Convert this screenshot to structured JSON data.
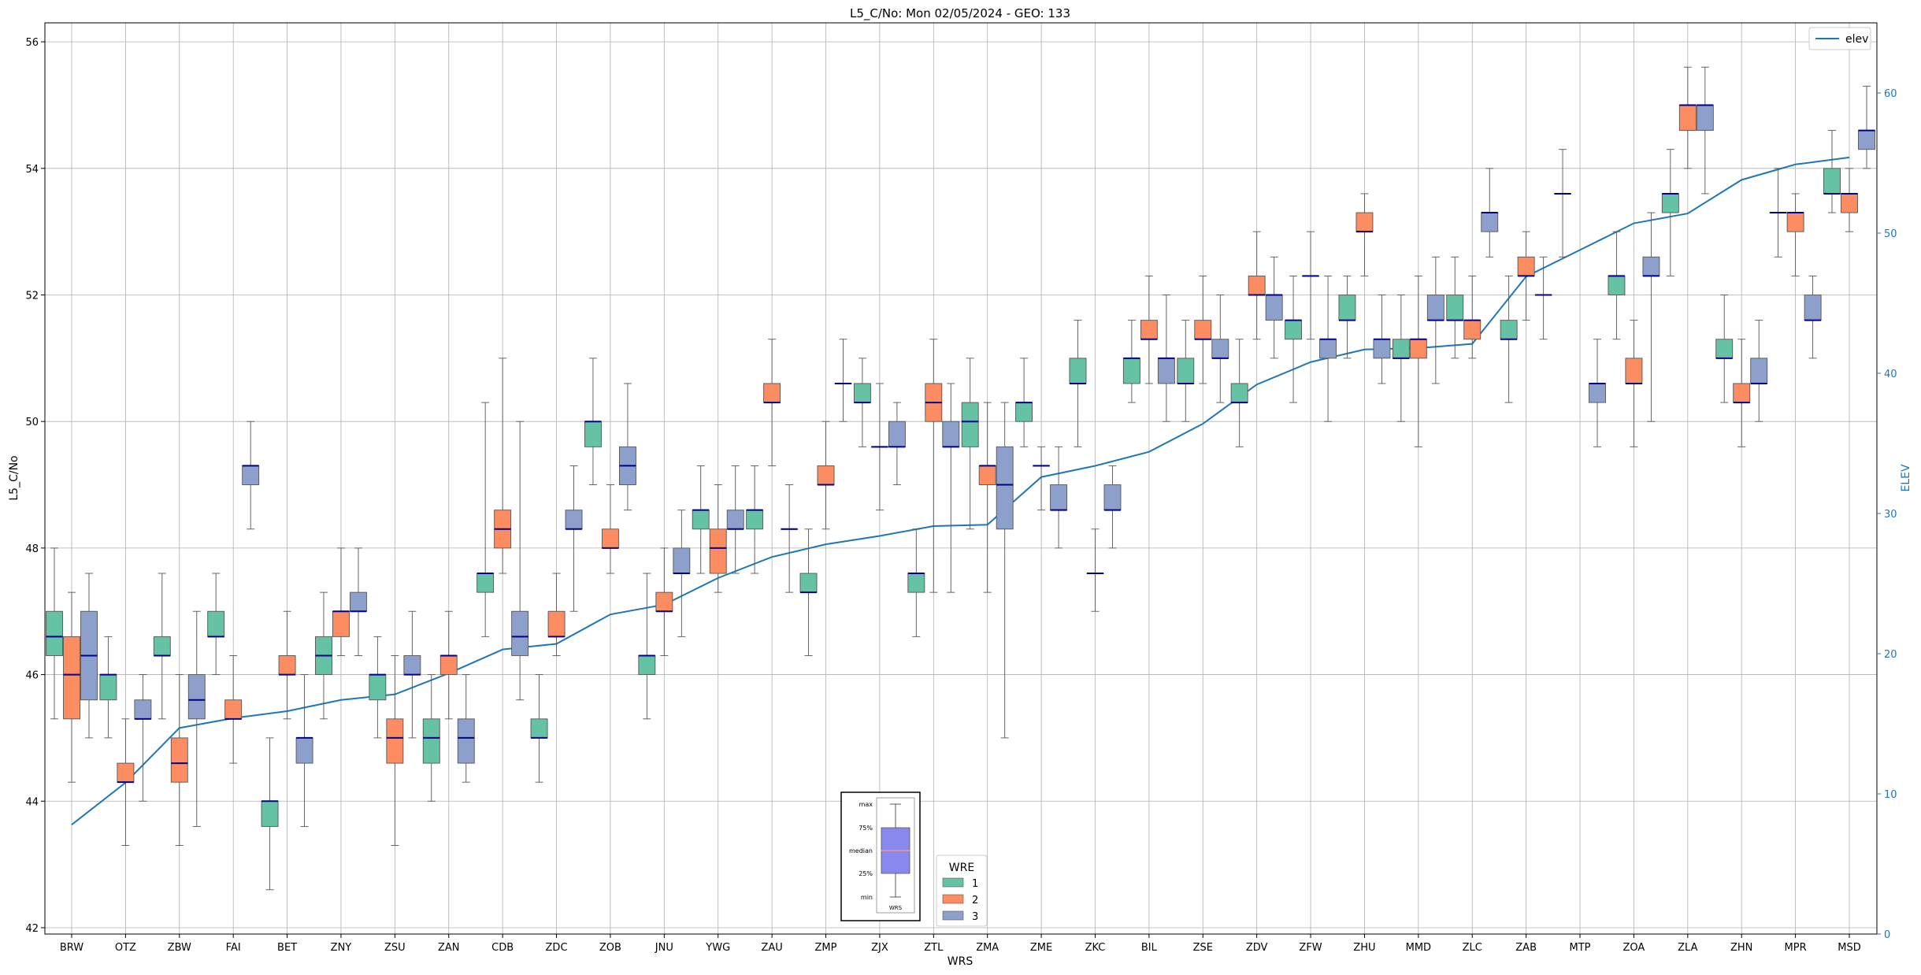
{
  "chart_data": {
    "type": "box",
    "title": "L5_C/No: Mon 02/05/2024 - GEO: 133",
    "xlabel": "WRS",
    "ylabel": "L5_C/No",
    "y2label": "ELEV",
    "ylim": [
      41.9,
      56.3
    ],
    "y2lim": [
      0,
      65
    ],
    "yticks": [
      42,
      44,
      46,
      48,
      50,
      52,
      54,
      56
    ],
    "y2ticks": [
      0,
      10,
      20,
      30,
      40,
      50,
      60
    ],
    "grid": true,
    "colors": {
      "1": "#66c2a5",
      "2": "#fc8d62",
      "3": "#8da0cb",
      "elev": "#1f77b4",
      "median": "#00008b"
    },
    "categories": [
      "BRW",
      "OTZ",
      "ZBW",
      "FAI",
      "BET",
      "ZNY",
      "ZSU",
      "ZAN",
      "CDB",
      "ZDC",
      "ZOB",
      "JNU",
      "YWG",
      "ZAU",
      "ZMP",
      "ZJX",
      "ZTL",
      "ZMA",
      "ZME",
      "ZKC",
      "BIL",
      "ZSE",
      "ZDV",
      "ZFW",
      "ZHU",
      "MMD",
      "ZLC",
      "ZAB",
      "MTP",
      "ZOA",
      "ZLA",
      "ZHN",
      "MPR",
      "MSD"
    ],
    "elevation": [
      7.8,
      10.8,
      14.7,
      15.4,
      15.9,
      16.7,
      17.1,
      18.6,
      20.3,
      20.7,
      22.8,
      23.5,
      25.4,
      26.9,
      27.8,
      28.4,
      29.1,
      29.2,
      32.6,
      33.4,
      34.4,
      36.4,
      39.2,
      40.8,
      41.7,
      41.8,
      42.1,
      46.9,
      48.8,
      50.7,
      51.4,
      53.8,
      54.9,
      55.4
    ],
    "boxes": [
      {
        "cat": "BRW",
        "wre": "1",
        "min": 45.3,
        "q1": 46.3,
        "med": 46.6,
        "q3": 47.0,
        "max": 48.0
      },
      {
        "cat": "BRW",
        "wre": "2",
        "min": 44.3,
        "q1": 45.3,
        "med": 46.0,
        "q3": 46.6,
        "max": 47.3
      },
      {
        "cat": "BRW",
        "wre": "3",
        "min": 45.0,
        "q1": 45.6,
        "med": 46.3,
        "q3": 47.0,
        "max": 47.6
      },
      {
        "cat": "OTZ",
        "wre": "1",
        "min": 45.0,
        "q1": 45.6,
        "med": 46.0,
        "q3": 46.0,
        "max": 46.6
      },
      {
        "cat": "OTZ",
        "wre": "2",
        "min": 43.3,
        "q1": 44.3,
        "med": 44.3,
        "q3": 44.6,
        "max": 45.3
      },
      {
        "cat": "OTZ",
        "wre": "3",
        "min": 44.0,
        "q1": 45.3,
        "med": 45.3,
        "q3": 45.6,
        "max": 46.0
      },
      {
        "cat": "ZBW",
        "wre": "1",
        "min": 45.3,
        "q1": 46.3,
        "med": 46.3,
        "q3": 46.6,
        "max": 47.6
      },
      {
        "cat": "ZBW",
        "wre": "2",
        "min": 43.3,
        "q1": 44.3,
        "med": 44.6,
        "q3": 45.0,
        "max": 46.0
      },
      {
        "cat": "ZBW",
        "wre": "3",
        "min": 43.6,
        "q1": 45.3,
        "med": 45.6,
        "q3": 46.0,
        "max": 47.0
      },
      {
        "cat": "FAI",
        "wre": "1",
        "min": 46.0,
        "q1": 46.6,
        "med": 46.6,
        "q3": 47.0,
        "max": 47.6
      },
      {
        "cat": "FAI",
        "wre": "2",
        "min": 44.6,
        "q1": 45.3,
        "med": 45.3,
        "q3": 45.6,
        "max": 46.3
      },
      {
        "cat": "FAI",
        "wre": "3",
        "min": 48.3,
        "q1": 49.0,
        "med": 49.3,
        "q3": 49.3,
        "max": 50.0
      },
      {
        "cat": "BET",
        "wre": "1",
        "min": 42.6,
        "q1": 43.6,
        "med": 44.0,
        "q3": 44.0,
        "max": 45.0
      },
      {
        "cat": "BET",
        "wre": "2",
        "min": 45.3,
        "q1": 46.0,
        "med": 46.0,
        "q3": 46.3,
        "max": 47.0
      },
      {
        "cat": "BET",
        "wre": "3",
        "min": 43.6,
        "q1": 44.6,
        "med": 45.0,
        "q3": 45.0,
        "max": 46.0
      },
      {
        "cat": "ZNY",
        "wre": "1",
        "min": 45.3,
        "q1": 46.0,
        "med": 46.3,
        "q3": 46.6,
        "max": 47.3
      },
      {
        "cat": "ZNY",
        "wre": "2",
        "min": 46.3,
        "q1": 46.6,
        "med": 47.0,
        "q3": 47.0,
        "max": 48.0
      },
      {
        "cat": "ZNY",
        "wre": "3",
        "min": 46.3,
        "q1": 47.0,
        "med": 47.0,
        "q3": 47.3,
        "max": 48.0
      },
      {
        "cat": "ZSU",
        "wre": "1",
        "min": 45.0,
        "q1": 45.6,
        "med": 46.0,
        "q3": 46.0,
        "max": 46.6
      },
      {
        "cat": "ZSU",
        "wre": "2",
        "min": 43.3,
        "q1": 44.6,
        "med": 45.0,
        "q3": 45.3,
        "max": 46.3
      },
      {
        "cat": "ZSU",
        "wre": "3",
        "min": 45.0,
        "q1": 46.0,
        "med": 46.0,
        "q3": 46.3,
        "max": 47.0
      },
      {
        "cat": "ZAN",
        "wre": "1",
        "min": 44.0,
        "q1": 44.6,
        "med": 45.0,
        "q3": 45.3,
        "max": 46.0
      },
      {
        "cat": "ZAN",
        "wre": "2",
        "min": 45.3,
        "q1": 46.0,
        "med": 46.3,
        "q3": 46.3,
        "max": 47.0
      },
      {
        "cat": "ZAN",
        "wre": "3",
        "min": 44.3,
        "q1": 44.6,
        "med": 45.0,
        "q3": 45.3,
        "max": 46.0
      },
      {
        "cat": "CDB",
        "wre": "1",
        "min": 46.6,
        "q1": 47.3,
        "med": 47.6,
        "q3": 47.6,
        "max": 50.3
      },
      {
        "cat": "CDB",
        "wre": "2",
        "min": 47.6,
        "q1": 48.0,
        "med": 48.3,
        "q3": 48.6,
        "max": 51.0
      },
      {
        "cat": "CDB",
        "wre": "3",
        "min": 45.6,
        "q1": 46.3,
        "med": 46.6,
        "q3": 47.0,
        "max": 50.0
      },
      {
        "cat": "ZDC",
        "wre": "1",
        "min": 44.3,
        "q1": 45.0,
        "med": 45.0,
        "q3": 45.3,
        "max": 46.0
      },
      {
        "cat": "ZDC",
        "wre": "2",
        "min": 46.3,
        "q1": 46.6,
        "med": 46.6,
        "q3": 47.0,
        "max": 47.6
      },
      {
        "cat": "ZDC",
        "wre": "3",
        "min": 47.0,
        "q1": 48.3,
        "med": 48.3,
        "q3": 48.6,
        "max": 49.3
      },
      {
        "cat": "ZOB",
        "wre": "1",
        "min": 49.0,
        "q1": 49.6,
        "med": 50.0,
        "q3": 50.0,
        "max": 51.0
      },
      {
        "cat": "ZOB",
        "wre": "2",
        "min": 47.6,
        "q1": 48.0,
        "med": 48.0,
        "q3": 48.3,
        "max": 49.0
      },
      {
        "cat": "ZOB",
        "wre": "3",
        "min": 48.6,
        "q1": 49.0,
        "med": 49.3,
        "q3": 49.6,
        "max": 50.6
      },
      {
        "cat": "JNU",
        "wre": "1",
        "min": 45.3,
        "q1": 46.0,
        "med": 46.3,
        "q3": 46.3,
        "max": 47.6
      },
      {
        "cat": "JNU",
        "wre": "2",
        "min": 46.3,
        "q1": 47.0,
        "med": 47.0,
        "q3": 47.3,
        "max": 48.0
      },
      {
        "cat": "JNU",
        "wre": "3",
        "min": 46.6,
        "q1": 47.6,
        "med": 47.6,
        "q3": 48.0,
        "max": 48.6
      },
      {
        "cat": "YWG",
        "wre": "1",
        "min": 47.6,
        "q1": 48.3,
        "med": 48.6,
        "q3": 48.6,
        "max": 49.3
      },
      {
        "cat": "YWG",
        "wre": "2",
        "min": 47.3,
        "q1": 47.6,
        "med": 48.0,
        "q3": 48.3,
        "max": 49.0
      },
      {
        "cat": "YWG",
        "wre": "3",
        "min": 47.6,
        "q1": 48.3,
        "med": 48.3,
        "q3": 48.6,
        "max": 49.3
      },
      {
        "cat": "ZAU",
        "wre": "1",
        "min": 47.6,
        "q1": 48.3,
        "med": 48.6,
        "q3": 48.6,
        "max": 49.3
      },
      {
        "cat": "ZAU",
        "wre": "2",
        "min": 49.3,
        "q1": 50.3,
        "med": 50.3,
        "q3": 50.6,
        "max": 51.3
      },
      {
        "cat": "ZAU",
        "wre": "3",
        "min": 47.3,
        "q1": 48.3,
        "med": 48.3,
        "q3": 48.3,
        "max": 49.0
      },
      {
        "cat": "ZMP",
        "wre": "1",
        "min": 46.3,
        "q1": 47.3,
        "med": 47.3,
        "q3": 47.6,
        "max": 48.3
      },
      {
        "cat": "ZMP",
        "wre": "2",
        "min": 48.3,
        "q1": 49.0,
        "med": 49.0,
        "q3": 49.3,
        "max": 50.0
      },
      {
        "cat": "ZMP",
        "wre": "3",
        "min": 50.0,
        "q1": 50.6,
        "med": 50.6,
        "q3": 50.6,
        "max": 51.3
      },
      {
        "cat": "ZJX",
        "wre": "1",
        "min": 49.6,
        "q1": 50.3,
        "med": 50.3,
        "q3": 50.6,
        "max": 51.0
      },
      {
        "cat": "ZJX",
        "wre": "2",
        "min": 48.6,
        "q1": 49.6,
        "med": 49.6,
        "q3": 49.6,
        "max": 50.6
      },
      {
        "cat": "ZJX",
        "wre": "3",
        "min": 49.0,
        "q1": 49.6,
        "med": 49.6,
        "q3": 50.0,
        "max": 50.3
      },
      {
        "cat": "ZTL",
        "wre": "1",
        "min": 46.6,
        "q1": 47.3,
        "med": 47.6,
        "q3": 47.6,
        "max": 48.3
      },
      {
        "cat": "ZTL",
        "wre": "2",
        "min": 47.3,
        "q1": 50.0,
        "med": 50.3,
        "q3": 50.6,
        "max": 51.3
      },
      {
        "cat": "ZTL",
        "wre": "3",
        "min": 47.3,
        "q1": 49.6,
        "med": 49.6,
        "q3": 50.0,
        "max": 50.6
      },
      {
        "cat": "ZMA",
        "wre": "1",
        "min": 48.3,
        "q1": 49.6,
        "med": 50.0,
        "q3": 50.3,
        "max": 51.0
      },
      {
        "cat": "ZMA",
        "wre": "2",
        "min": 47.3,
        "q1": 49.0,
        "med": 49.3,
        "q3": 49.3,
        "max": 50.3
      },
      {
        "cat": "ZMA",
        "wre": "3",
        "min": 45.0,
        "q1": 48.3,
        "med": 49.0,
        "q3": 49.6,
        "max": 50.3
      },
      {
        "cat": "ZME",
        "wre": "1",
        "min": 49.6,
        "q1": 50.0,
        "med": 50.3,
        "q3": 50.3,
        "max": 51.0
      },
      {
        "cat": "ZME",
        "wre": "2",
        "min": 48.6,
        "q1": 49.3,
        "med": 49.3,
        "q3": 49.3,
        "max": 49.6
      },
      {
        "cat": "ZME",
        "wre": "3",
        "min": 48.0,
        "q1": 48.6,
        "med": 48.6,
        "q3": 49.0,
        "max": 49.6
      },
      {
        "cat": "ZKC",
        "wre": "1",
        "min": 49.6,
        "q1": 50.6,
        "med": 50.6,
        "q3": 51.0,
        "max": 51.6
      },
      {
        "cat": "ZKC",
        "wre": "2",
        "min": 47.0,
        "q1": 47.6,
        "med": 47.6,
        "q3": 47.6,
        "max": 48.3
      },
      {
        "cat": "ZKC",
        "wre": "3",
        "min": 48.0,
        "q1": 48.6,
        "med": 48.6,
        "q3": 49.0,
        "max": 49.3
      },
      {
        "cat": "BIL",
        "wre": "1",
        "min": 50.3,
        "q1": 50.6,
        "med": 51.0,
        "q3": 51.0,
        "max": 51.6
      },
      {
        "cat": "BIL",
        "wre": "2",
        "min": 50.6,
        "q1": 51.3,
        "med": 51.3,
        "q3": 51.6,
        "max": 52.3
      },
      {
        "cat": "BIL",
        "wre": "3",
        "min": 50.0,
        "q1": 50.6,
        "med": 51.0,
        "q3": 51.0,
        "max": 52.0
      },
      {
        "cat": "ZSE",
        "wre": "1",
        "min": 50.0,
        "q1": 50.6,
        "med": 50.6,
        "q3": 51.0,
        "max": 51.6
      },
      {
        "cat": "ZSE",
        "wre": "2",
        "min": 50.6,
        "q1": 51.3,
        "med": 51.3,
        "q3": 51.6,
        "max": 52.3
      },
      {
        "cat": "ZSE",
        "wre": "3",
        "min": 50.3,
        "q1": 51.0,
        "med": 51.0,
        "q3": 51.3,
        "max": 52.0
      },
      {
        "cat": "ZDV",
        "wre": "1",
        "min": 49.6,
        "q1": 50.3,
        "med": 50.3,
        "q3": 50.6,
        "max": 51.3
      },
      {
        "cat": "ZDV",
        "wre": "2",
        "min": 51.3,
        "q1": 52.0,
        "med": 52.0,
        "q3": 52.3,
        "max": 53.0
      },
      {
        "cat": "ZDV",
        "wre": "3",
        "min": 51.0,
        "q1": 51.6,
        "med": 52.0,
        "q3": 52.0,
        "max": 52.6
      },
      {
        "cat": "ZFW",
        "wre": "1",
        "min": 50.3,
        "q1": 51.3,
        "med": 51.6,
        "q3": 51.6,
        "max": 52.3
      },
      {
        "cat": "ZFW",
        "wre": "2",
        "min": 51.3,
        "q1": 52.3,
        "med": 52.3,
        "q3": 52.3,
        "max": 53.0
      },
      {
        "cat": "ZFW",
        "wre": "3",
        "min": 50.0,
        "q1": 51.0,
        "med": 51.3,
        "q3": 51.3,
        "max": 52.3
      },
      {
        "cat": "ZHU",
        "wre": "1",
        "min": 51.0,
        "q1": 51.6,
        "med": 51.6,
        "q3": 52.0,
        "max": 52.3
      },
      {
        "cat": "ZHU",
        "wre": "2",
        "min": 52.3,
        "q1": 53.0,
        "med": 53.0,
        "q3": 53.3,
        "max": 53.6
      },
      {
        "cat": "ZHU",
        "wre": "3",
        "min": 50.6,
        "q1": 51.0,
        "med": 51.3,
        "q3": 51.3,
        "max": 52.0
      },
      {
        "cat": "MMD",
        "wre": "1",
        "min": 50.0,
        "q1": 51.0,
        "med": 51.0,
        "q3": 51.3,
        "max": 52.0
      },
      {
        "cat": "MMD",
        "wre": "2",
        "min": 49.6,
        "q1": 51.0,
        "med": 51.3,
        "q3": 51.3,
        "max": 52.3
      },
      {
        "cat": "MMD",
        "wre": "3",
        "min": 50.6,
        "q1": 51.6,
        "med": 51.6,
        "q3": 52.0,
        "max": 52.6
      },
      {
        "cat": "ZLC",
        "wre": "1",
        "min": 51.0,
        "q1": 51.6,
        "med": 51.6,
        "q3": 52.0,
        "max": 52.6
      },
      {
        "cat": "ZLC",
        "wre": "2",
        "min": 51.0,
        "q1": 51.3,
        "med": 51.6,
        "q3": 51.6,
        "max": 52.3
      },
      {
        "cat": "ZLC",
        "wre": "3",
        "min": 52.6,
        "q1": 53.0,
        "med": 53.3,
        "q3": 53.3,
        "max": 54.0
      },
      {
        "cat": "ZAB",
        "wre": "1",
        "min": 50.3,
        "q1": 51.3,
        "med": 51.3,
        "q3": 51.6,
        "max": 52.3
      },
      {
        "cat": "ZAB",
        "wre": "2",
        "min": 51.6,
        "q1": 52.3,
        "med": 52.3,
        "q3": 52.6,
        "max": 53.0
      },
      {
        "cat": "ZAB",
        "wre": "3",
        "min": 51.3,
        "q1": 52.0,
        "med": 52.0,
        "q3": 52.0,
        "max": 52.6
      },
      {
        "cat": "MTP",
        "wre": "1",
        "min": 52.6,
        "q1": 53.6,
        "med": 53.6,
        "q3": 53.6,
        "max": 54.3
      },
      {
        "cat": "MTP",
        "wre": "3",
        "min": 49.6,
        "q1": 50.3,
        "med": 50.6,
        "q3": 50.6,
        "max": 51.3
      },
      {
        "cat": "ZOA",
        "wre": "1",
        "min": 51.3,
        "q1": 52.0,
        "med": 52.3,
        "q3": 52.3,
        "max": 53.0
      },
      {
        "cat": "ZOA",
        "wre": "2",
        "min": 49.6,
        "q1": 50.6,
        "med": 50.6,
        "q3": 51.0,
        "max": 51.6
      },
      {
        "cat": "ZOA",
        "wre": "3",
        "min": 50.0,
        "q1": 52.3,
        "med": 52.3,
        "q3": 52.6,
        "max": 53.3
      },
      {
        "cat": "ZLA",
        "wre": "1",
        "min": 52.3,
        "q1": 53.3,
        "med": 53.6,
        "q3": 53.6,
        "max": 54.3
      },
      {
        "cat": "ZLA",
        "wre": "2",
        "min": 54.0,
        "q1": 54.6,
        "med": 55.0,
        "q3": 55.0,
        "max": 55.6
      },
      {
        "cat": "ZLA",
        "wre": "3",
        "min": 53.6,
        "q1": 54.6,
        "med": 55.0,
        "q3": 55.0,
        "max": 55.6
      },
      {
        "cat": "ZHN",
        "wre": "1",
        "min": 50.3,
        "q1": 51.0,
        "med": 51.0,
        "q3": 51.3,
        "max": 52.0
      },
      {
        "cat": "ZHN",
        "wre": "2",
        "min": 49.6,
        "q1": 50.3,
        "med": 50.3,
        "q3": 50.6,
        "max": 51.3
      },
      {
        "cat": "ZHN",
        "wre": "3",
        "min": 50.0,
        "q1": 50.6,
        "med": 50.6,
        "q3": 51.0,
        "max": 51.6
      },
      {
        "cat": "MPR",
        "wre": "1",
        "min": 52.6,
        "q1": 53.3,
        "med": 53.3,
        "q3": 53.3,
        "max": 54.0
      },
      {
        "cat": "MPR",
        "wre": "2",
        "min": 52.3,
        "q1": 53.0,
        "med": 53.3,
        "q3": 53.3,
        "max": 53.6
      },
      {
        "cat": "MPR",
        "wre": "3",
        "min": 51.0,
        "q1": 51.6,
        "med": 51.6,
        "q3": 52.0,
        "max": 52.3
      },
      {
        "cat": "MSD",
        "wre": "1",
        "min": 53.3,
        "q1": 53.6,
        "med": 53.6,
        "q3": 54.0,
        "max": 54.6
      },
      {
        "cat": "MSD",
        "wre": "2",
        "min": 53.0,
        "q1": 53.3,
        "med": 53.6,
        "q3": 53.6,
        "max": 54.0
      },
      {
        "cat": "MSD",
        "wre": "3",
        "min": 54.0,
        "q1": 54.3,
        "med": 54.6,
        "q3": 54.6,
        "max": 55.3
      }
    ],
    "legend_elev": {
      "label": "elev",
      "position": "top-right"
    },
    "legend_wre": {
      "title": "WRE",
      "labels": [
        "1",
        "2",
        "3"
      ],
      "position": "bottom-center"
    },
    "inset_key": {
      "labels": [
        "max",
        "75%",
        "median",
        "25%",
        "min"
      ],
      "xlabel": "WRS",
      "colors": {
        "box": "#8888ee",
        "median": "#f0a080"
      }
    }
  }
}
